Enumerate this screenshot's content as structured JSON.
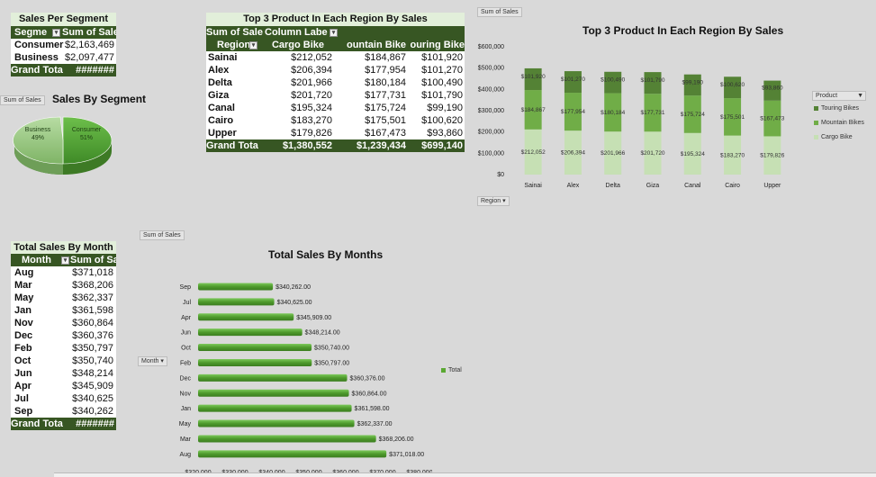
{
  "colors": {
    "header_dark": "#375623",
    "title_light": "#e2efda",
    "cargo": "#c6e0b4",
    "mountain": "#70ad47",
    "touring": "#548235",
    "bar_green": "#5aa832",
    "pie_consumer": "#4e9a34",
    "pie_business": "#92c47a"
  },
  "segment_table": {
    "title": "Sales Per Segment",
    "col1": "Segme",
    "col2": "Sum of Sales",
    "rows": [
      {
        "label": "Consumer",
        "value": "$2,163,469"
      },
      {
        "label": "Business",
        "value": "$2,097,477"
      }
    ],
    "total_label": "Grand Tota",
    "total_value": "#######"
  },
  "segment_pie": {
    "field_button": "Sum of Sales",
    "title": "Sales By Segment",
    "slices": [
      {
        "name": "Consumer",
        "pct": 51,
        "label": "Consumer\n51%"
      },
      {
        "name": "Business",
        "pct": 49,
        "label": "Business\n49%"
      }
    ],
    "consumer_label": "Consumer",
    "consumer_pct": "51%",
    "business_label": "Business",
    "business_pct": "49%"
  },
  "region_table": {
    "title": "Top 3 Product In Each Region By Sales",
    "sum_label": "Sum of Sale",
    "col_labels": "Column Labe",
    "row_header": "Region",
    "headers": [
      "Cargo Bike",
      "Mountain Bike",
      "Touring Bike"
    ],
    "header_display": [
      "Cargo Bike",
      "ountain Bike",
      "ouring Bike"
    ],
    "rows": [
      {
        "region": "Sainai",
        "cargo": "$212,052",
        "mountain": "$184,867",
        "touring": "$101,920"
      },
      {
        "region": "Alex",
        "cargo": "$206,394",
        "mountain": "$177,954",
        "touring": "$101,270"
      },
      {
        "region": "Delta",
        "cargo": "$201,966",
        "mountain": "$180,184",
        "touring": "$100,490"
      },
      {
        "region": "Giza",
        "cargo": "$201,720",
        "mountain": "$177,731",
        "touring": "$101,790"
      },
      {
        "region": "Canal",
        "cargo": "$195,324",
        "mountain": "$175,724",
        "touring": "$99,190"
      },
      {
        "region": "Cairo",
        "cargo": "$183,270",
        "mountain": "$175,501",
        "touring": "$100,620"
      },
      {
        "region": "Upper",
        "cargo": "$179,826",
        "mountain": "$167,473",
        "touring": "$93,860"
      }
    ],
    "total_label": "Grand Tota",
    "total_cargo": "$1,380,552",
    "total_mountain": "$1,239,434",
    "total_touring": "$699,140"
  },
  "month_table": {
    "title": "Total Sales By Month",
    "col1": "Month",
    "col2": "Sum of Sales",
    "rows": [
      {
        "month": "Aug",
        "value": "$371,018"
      },
      {
        "month": "Mar",
        "value": "$368,206"
      },
      {
        "month": "May",
        "value": "$362,337"
      },
      {
        "month": "Jan",
        "value": "$361,598"
      },
      {
        "month": "Nov",
        "value": "$360,864"
      },
      {
        "month": "Dec",
        "value": "$360,376"
      },
      {
        "month": "Feb",
        "value": "$350,797"
      },
      {
        "month": "Oct",
        "value": "$350,740"
      },
      {
        "month": "Jun",
        "value": "$348,214"
      },
      {
        "month": "Apr",
        "value": "$345,909"
      },
      {
        "month": "Jul",
        "value": "$340,625"
      },
      {
        "month": "Sep",
        "value": "$340,262"
      }
    ],
    "total_label": "Grand Tota",
    "total_value": "#######"
  },
  "chart_data": [
    {
      "type": "pie",
      "title": "Sales By Segment",
      "categories": [
        "Consumer",
        "Business"
      ],
      "values": [
        51,
        49
      ],
      "unit": "%"
    },
    {
      "type": "bar",
      "stacked": true,
      "title": "Top 3 Product In Each Region By Sales",
      "field_button": "Sum of Sales",
      "axis_button": "Region",
      "legend_button": "Product",
      "categories": [
        "Sainai",
        "Alex",
        "Delta",
        "Giza",
        "Canal",
        "Cairo",
        "Upper"
      ],
      "series": [
        {
          "name": "Cargo Bike",
          "values": [
            212052,
            206394,
            201966,
            201720,
            195324,
            183270,
            179826
          ],
          "labels": [
            "$212,052",
            "$206,394",
            "$201,966",
            "$201,720",
            "$195,324",
            "$183,270",
            "$179,826"
          ]
        },
        {
          "name": "Mountain Bikes",
          "values": [
            184867,
            177954,
            180184,
            177731,
            175724,
            175501,
            167473
          ],
          "labels": [
            "$184,867",
            "$177,954",
            "$180,184",
            "$177,731",
            "$175,724",
            "$175,501",
            "$167,473"
          ]
        },
        {
          "name": "Touring Bikes",
          "values": [
            101920,
            101270,
            100490,
            101790,
            99190,
            100620,
            93860
          ],
          "labels": [
            "$101,920",
            "$101,270",
            "$100,490",
            "$101,790",
            "$99,190",
            "$100,620",
            "$93,860"
          ]
        }
      ],
      "legend_order": [
        "Touring Bikes",
        "Mountain Bikes",
        "Cargo Bike"
      ],
      "ylim": [
        0,
        600000
      ],
      "yticks": [
        "$0",
        "$100,000",
        "$200,000",
        "$300,000",
        "$400,000",
        "$500,000",
        "$600,000"
      ],
      "legend_position": "right"
    },
    {
      "type": "bar",
      "orientation": "horizontal",
      "title": "Total Sales By Months",
      "field_button": "Sum of Sales",
      "axis_button": "Month",
      "legend": [
        "Total"
      ],
      "categories": [
        "Sep",
        "Jul",
        "Apr",
        "Jun",
        "Oct",
        "Feb",
        "Dec",
        "Nov",
        "Jan",
        "May",
        "Mar",
        "Aug"
      ],
      "values": [
        340262,
        340625,
        345909,
        348214,
        350740,
        350797,
        360376,
        360864,
        361598,
        362337,
        368206,
        371018
      ],
      "labels": [
        "$340,262.00",
        "$340,625.00",
        "$345,909.00",
        "$348,214.00",
        "$350,740.00",
        "$350,797.00",
        "$360,376.00",
        "$360,864.00",
        "$361,598.00",
        "$362,337.00",
        "$368,206.00",
        "$371,018.00"
      ],
      "xlim": [
        320000,
        380000
      ],
      "xticks": [
        "$320,000",
        "$330,000",
        "$340,000",
        "$350,000",
        "$360,000",
        "$370,000",
        "$380,000"
      ],
      "legend_position": "right"
    }
  ]
}
